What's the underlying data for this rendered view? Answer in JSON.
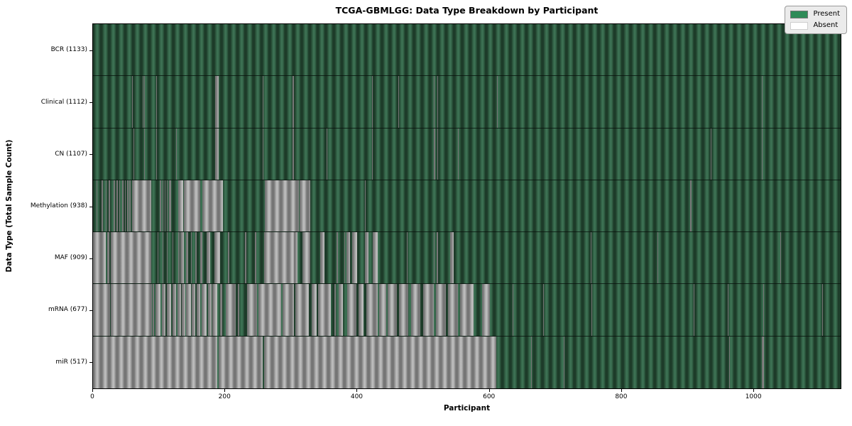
{
  "title": "TCGA-GBMLGG: Data Type Breakdown by Participant",
  "xlabel": "Participant",
  "ylabel": "Data Type (Total Sample Count)",
  "legend": {
    "present_label": "Present",
    "absent_label": "Absent",
    "position": "upper right"
  },
  "colors": {
    "present": "#2e8b57",
    "absent": "#ffffff",
    "present_render_mid": "#2e5a40",
    "absent_render_mid": "#9b9b9b",
    "legend_background": "#ebebeb",
    "figure_background": "#ffffff",
    "axis_border": "#000000"
  },
  "chart_data": {
    "type": "heatmap",
    "title": "TCGA-GBMLGG: Data Type Breakdown by Participant",
    "xlabel": "Participant",
    "ylabel": "Data Type (Total Sample Count)",
    "x_range": [
      0,
      1133
    ],
    "x_ticks": [
      0,
      200,
      400,
      600,
      800,
      1000
    ],
    "legend_entries": [
      "Present",
      "Absent"
    ],
    "grid": false,
    "states": [
      "present",
      "absent"
    ],
    "rows": [
      {
        "name": "BCR",
        "label": "BCR (1133)",
        "total_samples": 1133,
        "absent_segments": []
      },
      {
        "name": "Clinical",
        "label": "Clinical (1112)",
        "total_samples": 1112,
        "absent_segments": [
          [
            59,
            60
          ],
          [
            75,
            76
          ],
          [
            77,
            78
          ],
          [
            96,
            97
          ],
          [
            185,
            190
          ],
          [
            257,
            258
          ],
          [
            302,
            305
          ],
          [
            423,
            424
          ],
          [
            463,
            464
          ],
          [
            517,
            518
          ],
          [
            522,
            523
          ],
          [
            612,
            613
          ],
          [
            1014,
            1015
          ]
        ]
      },
      {
        "name": "CN",
        "label": "CN (1107)",
        "total_samples": 1107,
        "absent_segments": [
          [
            61,
            62
          ],
          [
            77,
            78
          ],
          [
            96,
            97
          ],
          [
            106,
            107
          ],
          [
            126,
            127
          ],
          [
            185,
            190
          ],
          [
            257,
            258
          ],
          [
            302,
            305
          ],
          [
            354,
            355
          ],
          [
            423,
            424
          ],
          [
            516,
            519
          ],
          [
            522,
            523
          ],
          [
            553,
            554
          ],
          [
            936,
            937
          ],
          [
            1014,
            1015
          ]
        ]
      },
      {
        "name": "Methylation",
        "label": "Methylation (938)",
        "total_samples": 938,
        "absent_segments": [
          [
            5,
            7
          ],
          [
            13,
            15
          ],
          [
            19,
            20
          ],
          [
            24,
            26
          ],
          [
            31,
            33
          ],
          [
            36,
            38
          ],
          [
            40,
            41
          ],
          [
            44,
            46
          ],
          [
            48,
            50
          ],
          [
            52,
            54
          ],
          [
            55,
            57
          ],
          [
            59,
            88
          ],
          [
            101,
            103
          ],
          [
            105,
            107
          ],
          [
            109,
            110
          ],
          [
            112,
            113
          ],
          [
            115,
            118
          ],
          [
            129,
            137
          ],
          [
            138,
            163
          ],
          [
            166,
            197
          ],
          [
            260,
            312
          ],
          [
            313,
            329
          ],
          [
            412,
            413
          ],
          [
            905,
            907
          ]
        ]
      },
      {
        "name": "MAF",
        "label": "MAF (909)",
        "total_samples": 909,
        "absent_segments": [
          [
            0,
            19
          ],
          [
            21,
            25
          ],
          [
            27,
            88
          ],
          [
            98,
            99
          ],
          [
            105,
            107
          ],
          [
            112,
            113
          ],
          [
            120,
            122
          ],
          [
            129,
            131
          ],
          [
            132,
            138
          ],
          [
            141,
            144
          ],
          [
            148,
            150
          ],
          [
            155,
            157
          ],
          [
            162,
            166
          ],
          [
            172,
            178
          ],
          [
            184,
            193
          ],
          [
            204,
            207
          ],
          [
            230,
            232
          ],
          [
            245,
            247
          ],
          [
            259,
            304
          ],
          [
            305,
            310
          ],
          [
            317,
            329
          ],
          [
            344,
            351
          ],
          [
            369,
            371
          ],
          [
            381,
            382
          ],
          [
            384,
            390
          ],
          [
            393,
            400
          ],
          [
            412,
            418
          ],
          [
            424,
            432
          ],
          [
            476,
            477
          ],
          [
            516,
            518
          ],
          [
            521,
            523
          ],
          [
            541,
            547
          ],
          [
            754,
            755
          ],
          [
            855,
            856
          ],
          [
            1042,
            1043
          ]
        ]
      },
      {
        "name": "mRNA",
        "label": "mRNA (677)",
        "total_samples": 677,
        "absent_segments": [
          [
            0,
            26
          ],
          [
            27,
            89
          ],
          [
            90,
            93
          ],
          [
            95,
            102
          ],
          [
            104,
            110
          ],
          [
            112,
            118
          ],
          [
            120,
            126
          ],
          [
            128,
            133
          ],
          [
            135,
            140
          ],
          [
            141,
            148
          ],
          [
            150,
            155
          ],
          [
            157,
            163
          ],
          [
            165,
            172
          ],
          [
            174,
            180
          ],
          [
            181,
            188
          ],
          [
            193,
            196
          ],
          [
            201,
            216
          ],
          [
            220,
            222
          ],
          [
            234,
            249
          ],
          [
            251,
            285
          ],
          [
            287,
            305
          ],
          [
            307,
            327
          ],
          [
            331,
            339
          ],
          [
            341,
            360
          ],
          [
            366,
            368
          ],
          [
            372,
            379
          ],
          [
            385,
            399
          ],
          [
            402,
            410
          ],
          [
            414,
            431
          ],
          [
            434,
            444
          ],
          [
            447,
            460
          ],
          [
            464,
            478
          ],
          [
            482,
            496
          ],
          [
            500,
            517
          ],
          [
            520,
            535
          ],
          [
            538,
            553
          ],
          [
            556,
            577
          ],
          [
            590,
            602
          ],
          [
            630,
            631
          ],
          [
            636,
            637
          ],
          [
            682,
            683
          ],
          [
            755,
            756
          ],
          [
            910,
            911
          ],
          [
            962,
            963
          ],
          [
            1016,
            1017
          ],
          [
            1105,
            1106
          ]
        ]
      },
      {
        "name": "miR",
        "label": "miR (517)",
        "total_samples": 517,
        "absent_segments": [
          [
            0,
            188
          ],
          [
            190,
            257
          ],
          [
            259,
            611
          ],
          [
            664,
            665
          ],
          [
            713,
            714
          ],
          [
            941,
            942
          ],
          [
            964,
            965
          ],
          [
            998,
            999
          ],
          [
            1014,
            1017
          ]
        ]
      }
    ]
  }
}
